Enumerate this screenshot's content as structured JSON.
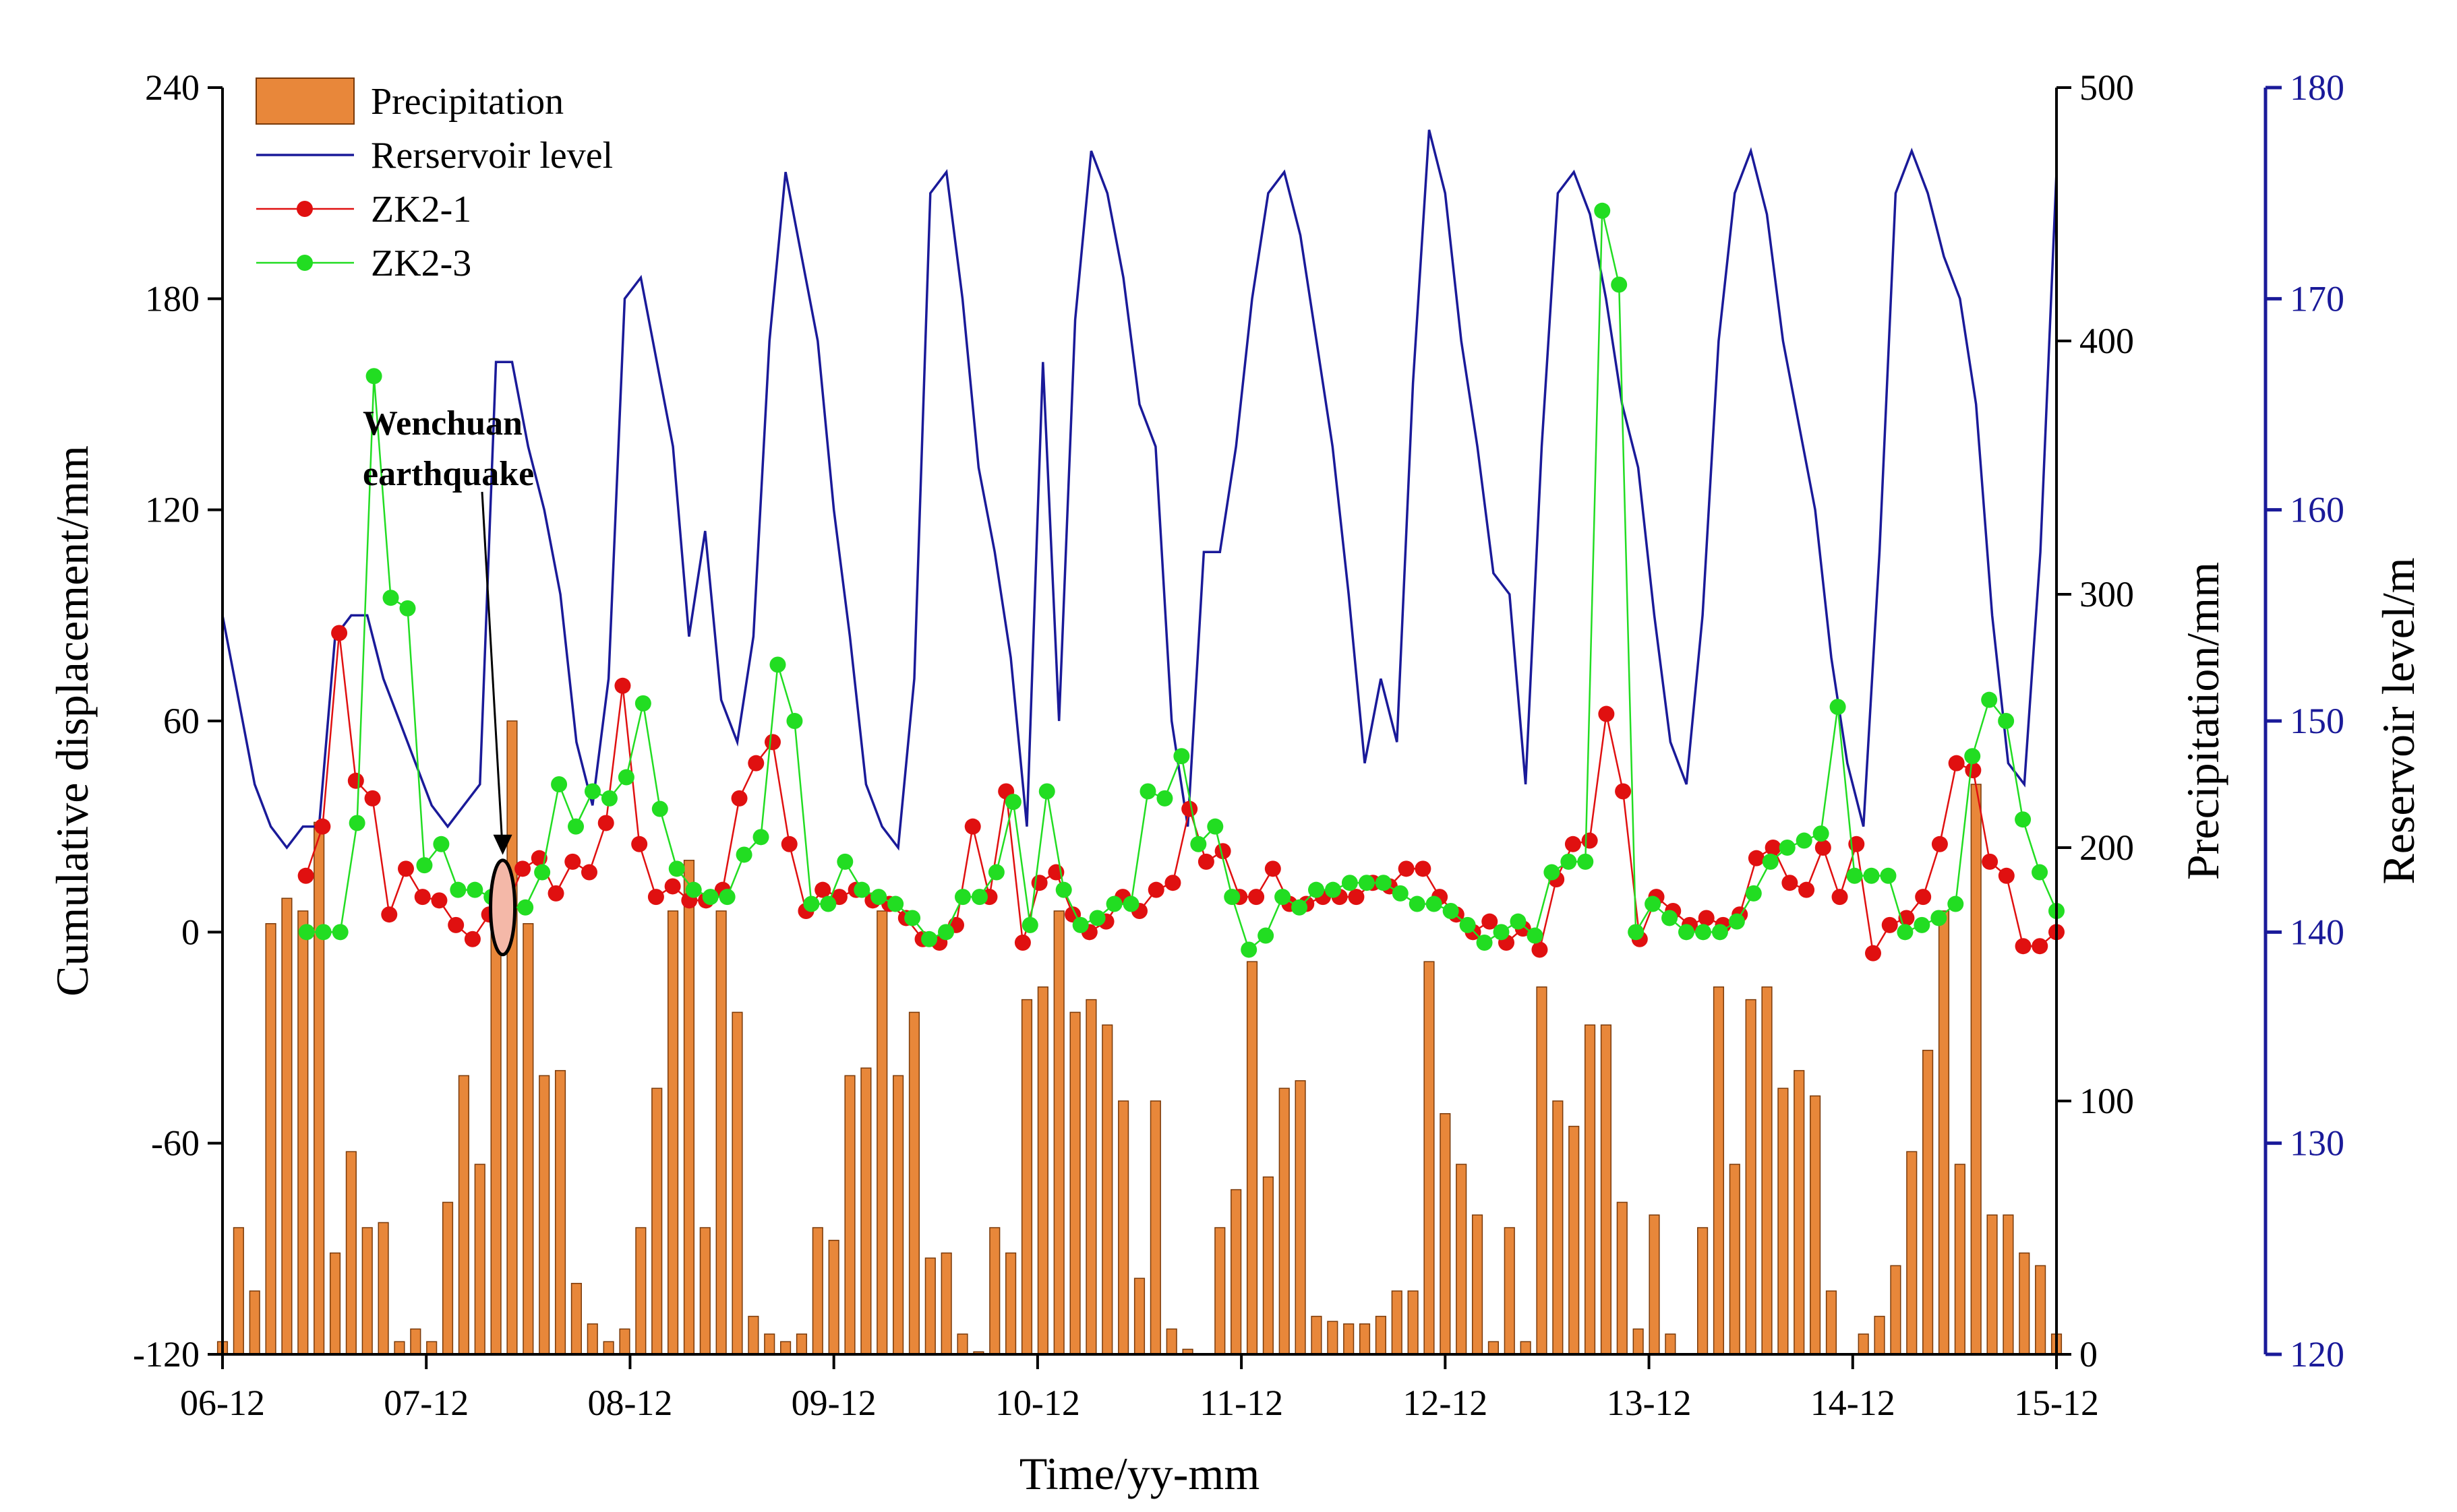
{
  "chart_data": {
    "type": "combo",
    "x_axis": {
      "label": "Time/yy-mm",
      "tick_labels": [
        "06-12",
        "07-12",
        "08-12",
        "09-12",
        "10-12",
        "11-12",
        "12-12",
        "13-12",
        "14-12",
        "15-12"
      ],
      "range_months": [
        0,
        108
      ]
    },
    "y_left": {
      "label": "Cumulative displacement/mm",
      "range": [
        -120,
        240
      ],
      "ticks": [
        "-120",
        "-60",
        "0",
        "60",
        "120",
        "180",
        "240"
      ]
    },
    "y_precip": {
      "label": "Precipitation/mm",
      "range": [
        0,
        500
      ],
      "ticks": [
        "0",
        "100",
        "200",
        "300",
        "400",
        "500"
      ]
    },
    "y_reservoir": {
      "label": "Reservoir level/m",
      "range": [
        120,
        180
      ],
      "ticks": [
        "120",
        "130",
        "140",
        "150",
        "160",
        "170",
        "180"
      ],
      "color": "#1a1a99"
    },
    "legend": {
      "position": "top-left",
      "entries": [
        {
          "name": "Precipitation",
          "type": "bar",
          "color": "#e8873a"
        },
        {
          "name": "Rerservoir level",
          "type": "line",
          "color": "#1a1a99"
        },
        {
          "name": "ZK2-1",
          "type": "line-marker",
          "color": "#e01010"
        },
        {
          "name": "ZK2-3",
          "type": "line-marker",
          "color": "#22dd22"
        }
      ]
    },
    "annotation": {
      "line1": "Wenchuan",
      "line2": "earthquake",
      "month": 16.5,
      "value": 7
    },
    "series": {
      "precipitation": {
        "axis": "y_precip",
        "color": "#e8873a",
        "values": [
          5,
          50,
          25,
          170,
          180,
          175,
          210,
          40,
          80,
          50,
          52,
          5,
          10,
          5,
          60,
          110,
          75,
          180,
          250,
          170,
          110,
          112,
          28,
          12,
          5,
          10,
          50,
          105,
          175,
          195,
          50,
          175,
          135,
          15,
          8,
          5,
          8,
          50,
          45,
          110,
          113,
          175,
          110,
          135,
          38,
          40,
          8,
          1,
          50,
          40,
          140,
          145,
          175,
          135,
          140,
          130,
          100,
          30,
          100,
          10,
          2,
          0,
          50,
          65,
          155,
          70,
          105,
          108,
          15,
          13,
          12,
          12,
          15,
          25,
          25,
          155,
          95,
          75,
          55,
          5,
          50,
          5,
          145,
          100,
          90,
          130,
          130,
          60,
          10,
          55,
          8,
          0,
          50,
          145,
          75,
          140,
          145,
          105,
          112,
          102,
          25,
          0,
          8,
          15,
          35,
          80,
          120,
          175,
          75,
          225,
          55,
          55,
          40,
          35,
          8
        ]
      },
      "reservoir_level": {
        "axis": "y_reservoir",
        "color": "#1a1a99",
        "values": [
          155,
          151,
          147,
          145,
          144,
          145,
          145,
          154,
          155,
          155,
          152,
          150,
          148,
          146,
          145,
          146,
          147,
          167,
          167,
          163,
          160,
          156,
          149,
          146,
          152,
          170,
          171,
          167,
          163,
          154,
          159,
          151,
          149,
          154,
          168,
          176,
          172,
          168,
          160,
          154,
          147,
          145,
          144,
          152,
          175,
          176,
          170,
          162,
          158,
          153,
          145,
          167,
          150,
          169,
          177,
          175,
          171,
          165,
          163,
          150,
          145,
          158,
          158,
          163,
          170,
          175,
          176,
          173,
          168,
          163,
          156,
          148,
          152,
          149,
          166,
          178,
          175,
          168,
          163,
          157,
          156,
          147,
          163,
          175,
          176,
          174,
          170,
          165,
          162,
          155,
          149,
          147,
          155,
          168,
          175,
          177,
          174,
          168,
          164,
          160,
          153,
          148,
          145,
          158,
          175,
          177,
          175,
          172,
          170,
          165,
          155,
          148,
          147,
          158,
          176
        ]
      },
      "ZK2-1": {
        "axis": "y_left",
        "color": "#e01010",
        "values": [
          null,
          null,
          null,
          null,
          null,
          16,
          30,
          85,
          43,
          38,
          5,
          18,
          10,
          9,
          2,
          -2,
          5,
          7,
          18,
          21,
          11,
          20,
          17,
          31,
          70,
          25,
          10,
          13,
          9,
          9,
          12,
          38,
          48,
          54,
          25,
          6,
          12,
          10,
          12,
          9,
          8,
          4,
          -2,
          -3,
          2,
          30,
          10,
          40,
          -3,
          14,
          17,
          5,
          0,
          3,
          10,
          6,
          12,
          14,
          35,
          20,
          23,
          10,
          10,
          18,
          8,
          8,
          10,
          10,
          10,
          14,
          13,
          18,
          18,
          10,
          5,
          0,
          3,
          -3,
          1,
          -5,
          15,
          25,
          26,
          62,
          40,
          -2,
          10,
          6,
          2,
          4,
          2,
          5,
          21,
          24,
          14,
          12,
          24,
          10,
          25,
          -6,
          2,
          4,
          10,
          25,
          48,
          46,
          20,
          16,
          -4,
          -4,
          0
        ]
      },
      "ZK2-3": {
        "axis": "y_left",
        "color": "#22dd22",
        "values": [
          null,
          null,
          null,
          null,
          null,
          0,
          0,
          0,
          31,
          158,
          95,
          92,
          19,
          25,
          12,
          12,
          10,
          7,
          7,
          17,
          42,
          30,
          40,
          38,
          44,
          65,
          35,
          18,
          12,
          10,
          10,
          22,
          27,
          76,
          60,
          8,
          8,
          20,
          12,
          10,
          8,
          4,
          -2,
          0,
          10,
          10,
          17,
          37,
          2,
          40,
          12,
          2,
          4,
          8,
          8,
          40,
          38,
          50,
          25,
          30,
          10,
          -5,
          -1,
          10,
          7,
          12,
          12,
          14,
          14,
          14,
          11,
          8,
          8,
          6,
          2,
          -3,
          0,
          3,
          -1,
          17,
          20,
          20,
          205,
          184,
          0,
          8,
          4,
          0,
          0,
          0,
          3,
          11,
          20,
          24,
          26,
          28,
          64,
          16,
          16,
          16,
          0,
          2,
          4,
          8,
          50,
          66,
          60,
          32,
          17,
          6
        ]
      }
    }
  }
}
